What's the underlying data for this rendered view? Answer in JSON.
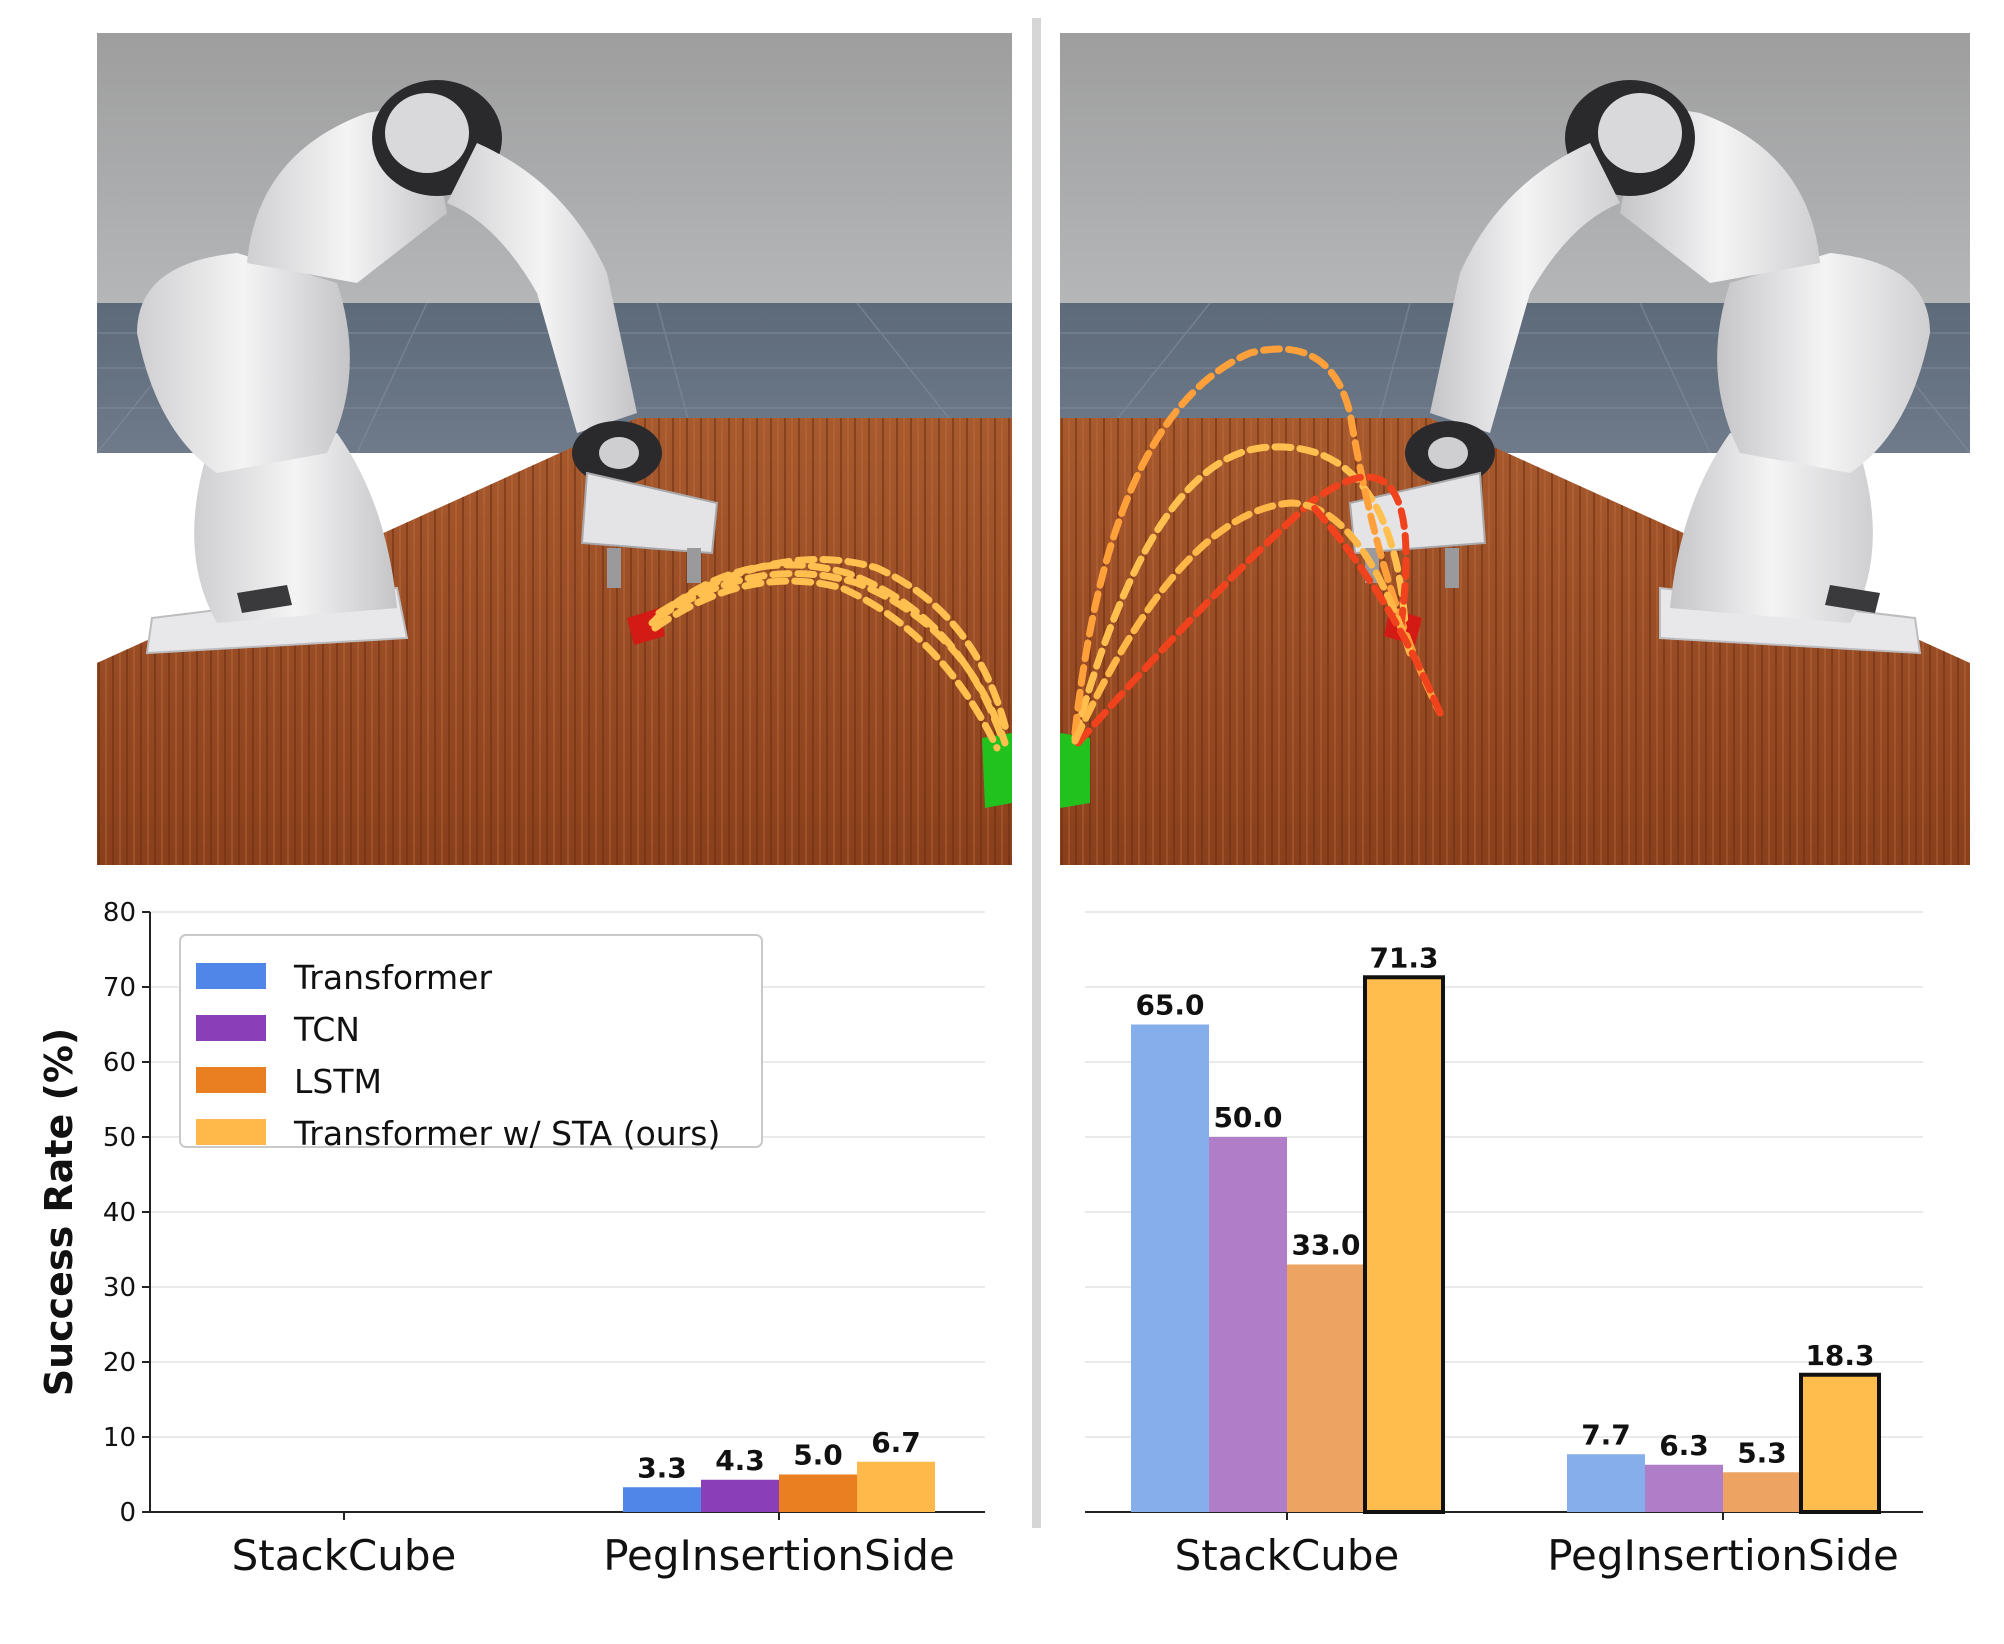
{
  "colors": {
    "transformer": "#4f86e8",
    "tcn": "#8a3fb8",
    "lstm": "#ea7f22",
    "sta": "#ffb84a",
    "transformer_light": "#86aeeb",
    "tcn_light": "#b07dc8",
    "lstm_light": "#eda362",
    "sta_light": "#ffbd4e",
    "path_yellow": "#ffc04f",
    "path_red": "#f0421c",
    "cube_red": "#d41a14",
    "cube_green": "#21c21e"
  },
  "chart_data": [
    {
      "type": "bar",
      "title": "",
      "xlabel": "",
      "ylabel": "Success Rate (%)",
      "ylim": [
        0,
        80
      ],
      "yticks": [
        "0",
        "10",
        "20",
        "30",
        "40",
        "50",
        "60",
        "70",
        "80"
      ],
      "categories": [
        "StackCube",
        "PegInsertionSide"
      ],
      "legend_position": "top-left",
      "series": [
        {
          "name": "Transformer",
          "values": [
            0,
            3.3
          ],
          "labels": [
            "",
            "3.3"
          ]
        },
        {
          "name": "TCN",
          "values": [
            0,
            4.3
          ],
          "labels": [
            "",
            "4.3"
          ]
        },
        {
          "name": "LSTM",
          "values": [
            0,
            5.0
          ],
          "labels": [
            "",
            "5.0"
          ]
        },
        {
          "name": "Transformer w/ STA (ours)",
          "values": [
            0,
            6.7
          ],
          "labels": [
            "",
            "6.7"
          ]
        }
      ]
    },
    {
      "type": "bar",
      "ylim": [
        0,
        80
      ],
      "categories": [
        "StackCube",
        "PegInsertionSide"
      ],
      "series": [
        {
          "values": [
            65.0,
            7.7
          ],
          "labels": [
            "65.0",
            "7.7"
          ]
        },
        {
          "values": [
            50.0,
            6.3
          ],
          "labels": [
            "50.0",
            "6.3"
          ]
        },
        {
          "values": [
            33.0,
            5.3
          ],
          "labels": [
            "33.0",
            "5.3"
          ]
        },
        {
          "values": [
            71.3,
            18.3
          ],
          "labels": [
            "71.3",
            "18.3"
          ]
        }
      ]
    }
  ]
}
